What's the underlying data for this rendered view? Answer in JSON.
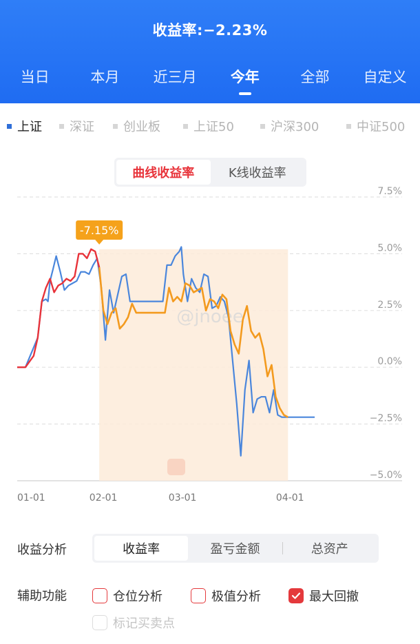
{
  "header": {
    "title": "收益率:−2.23%",
    "tabs": [
      {
        "label": "当日",
        "active": false
      },
      {
        "label": "本月",
        "active": false
      },
      {
        "label": "近三月",
        "active": false
      },
      {
        "label": "今年",
        "active": true
      },
      {
        "label": "全部",
        "active": false
      },
      {
        "label": "自定义",
        "active": false
      }
    ]
  },
  "indexes": [
    {
      "label": "上证",
      "active": true,
      "color": "#2f6fd8"
    },
    {
      "label": "深证",
      "active": false
    },
    {
      "label": "创业板",
      "active": false
    },
    {
      "label": "上证50",
      "active": false
    },
    {
      "label": "沪深300",
      "active": false
    },
    {
      "label": "中证500",
      "active": false
    }
  ],
  "mode": {
    "curve_label": "曲线收益率",
    "kline_label": "K线收益率",
    "active": "curve"
  },
  "colors": {
    "accent_red": "#e8333a",
    "index_line": "#4a86dc",
    "return_line": "#f39a1e",
    "drawdown_line": "#e8333a",
    "drawdown_fill": "#fdebd9"
  },
  "chart_data": {
    "type": "line",
    "x_labels": [
      "01-01",
      "02-01",
      "03-01",
      "04-01"
    ],
    "y_ticks": [
      "7.5%",
      "5.0%",
      "2.5%",
      "0.0%",
      "−2.5%",
      "−5.0%"
    ],
    "ylim": [
      -5.0,
      7.5
    ],
    "max_drawdown_label": "-7.15%",
    "watermark": "@jnoee",
    "series": [
      {
        "key": "index",
        "x": [
          0,
          2,
          5,
          6,
          7,
          7.5,
          8,
          8.7,
          9.5,
          10.5,
          11.5,
          12.5,
          13.5,
          14.5,
          15.5,
          16.5,
          17.5,
          18.5,
          19.5,
          20.5,
          21.5,
          22.5,
          23.5,
          24.5,
          25.5,
          26.5,
          27.5,
          28.5,
          29.5,
          30,
          30.5,
          31.5,
          32.5,
          33.5,
          34.5,
          35.5,
          36.5,
          37.5,
          38.5,
          39.5,
          40,
          40.5,
          41.5,
          42.5,
          43.5,
          44.5,
          45.5,
          46.5,
          47.5,
          48.5,
          49.5,
          50.5,
          51.5,
          52.5,
          53.5,
          54.5,
          55.5,
          56.5,
          57.5,
          58.5,
          59.5,
          60.5,
          61.5,
          62.5,
          63.5,
          64.5,
          65.5,
          66.5,
          67.5,
          68.5,
          69.5,
          70.5,
          71.5,
          72.5
        ],
        "values": [
          0.0,
          0.0,
          1.3,
          2.9,
          3.0,
          2.9,
          3.8,
          4.3,
          4.9,
          4.2,
          3.4,
          3.6,
          3.7,
          3.8,
          4.2,
          4.2,
          4.1,
          4.5,
          4.8,
          3.5,
          1.2,
          3.4,
          2.4,
          3.2,
          4.0,
          4.1,
          2.9,
          2.9,
          2.9,
          2.9,
          2.9,
          2.9,
          2.9,
          2.9,
          2.9,
          2.9,
          4.5,
          4.5,
          4.9,
          5.1,
          5.3,
          4.1,
          2.9,
          3.9,
          3.5,
          3.3,
          4.1,
          4.0,
          2.6,
          2.7,
          3.1,
          2.9,
          2.2,
          0.3,
          -1.6,
          -3.9,
          -1.0,
          0.3,
          -2.0,
          -1.4,
          -1.3,
          -1.3,
          -2.0,
          -1.0,
          -2.1,
          -2.2,
          -2.2,
          -2.2,
          -2.2,
          -2.2,
          -2.2,
          -2.2,
          -2.2,
          -2.2
        ]
      },
      {
        "key": "return",
        "x": [
          0,
          2,
          4,
          5,
          6,
          7,
          8,
          9,
          10,
          11,
          12,
          13,
          14,
          15,
          16,
          17,
          18,
          19,
          20,
          21,
          22,
          23,
          24,
          25,
          26,
          27,
          28,
          29,
          30,
          31,
          32,
          33,
          34,
          35,
          36,
          37,
          38,
          39,
          40,
          41,
          42,
          43,
          44,
          45,
          46,
          47,
          48,
          49,
          50,
          51,
          52,
          53,
          54,
          55,
          56,
          57,
          58,
          59,
          60,
          61,
          62,
          63,
          64,
          65,
          66
        ],
        "values": [
          0.0,
          0.0,
          0.5,
          1.3,
          2.9,
          3.5,
          3.9,
          3.3,
          3.6,
          3.7,
          3.9,
          3.8,
          4.0,
          5.0,
          5.0,
          4.8,
          5.2,
          5.1,
          4.4,
          2.5,
          1.9,
          2.4,
          2.6,
          1.7,
          1.9,
          2.2,
          2.8,
          2.4,
          2.4,
          2.4,
          2.4,
          2.4,
          2.4,
          2.4,
          2.4,
          3.5,
          2.9,
          3.1,
          2.9,
          3.7,
          3.6,
          3.3,
          3.4,
          3.5,
          2.5,
          3.0,
          2.9,
          2.6,
          3.2,
          3.0,
          1.6,
          1.0,
          0.6,
          2.1,
          2.7,
          1.6,
          1.3,
          1.5,
          0.8,
          -0.4,
          0.1,
          -1.3,
          -1.8,
          -2.1,
          -2.2
        ]
      }
    ],
    "drawdown_segment_end_index": 18
  },
  "analysis": {
    "label": "收益分析",
    "options": [
      {
        "label": "收益率",
        "active": true
      },
      {
        "label": "盈亏金额",
        "active": false
      },
      {
        "label": "总资产",
        "active": false
      }
    ]
  },
  "aux": {
    "label": "辅助功能",
    "options": [
      {
        "label": "仓位分析",
        "checked": false,
        "disabled": false
      },
      {
        "label": "极值分析",
        "checked": false,
        "disabled": false
      },
      {
        "label": "最大回撤",
        "checked": true,
        "disabled": false
      },
      {
        "label": "标记买卖点",
        "checked": false,
        "disabled": true
      }
    ]
  }
}
